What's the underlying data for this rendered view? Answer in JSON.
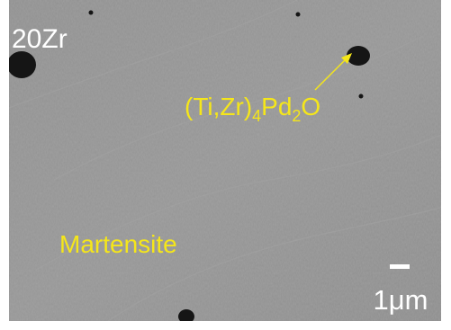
{
  "sample_label": "20Zr",
  "phase_label": {
    "parts": [
      "(Ti,Zr)",
      "4",
      "Pd",
      "2",
      "O"
    ]
  },
  "matrix_label": "Martensite",
  "scale_bar_label": "1μm"
}
